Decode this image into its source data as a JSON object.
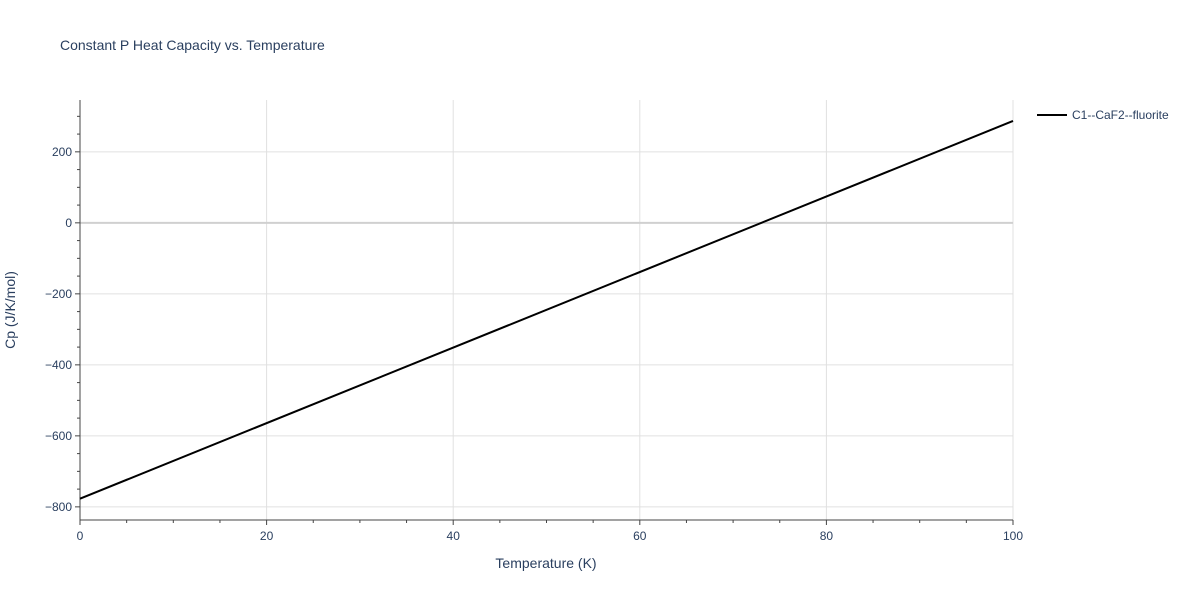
{
  "chart_data": {
    "type": "line",
    "title": "Constant P Heat Capacity vs. Temperature",
    "xlabel": "Temperature (K)",
    "ylabel": "Cp (J/K/mol)",
    "xlim": [
      0,
      100
    ],
    "ylim": [
      -837,
      346
    ],
    "xticks": [
      0,
      20,
      40,
      60,
      80,
      100
    ],
    "yticks": [
      -800,
      -600,
      -400,
      -200,
      0,
      200
    ],
    "grid": true,
    "legend_placement": "top-right",
    "series": [
      {
        "name": "C1--CaF2--fluorite",
        "color": "#000000",
        "x": [
          0,
          100
        ],
        "y": [
          -777,
          287
        ]
      }
    ]
  }
}
